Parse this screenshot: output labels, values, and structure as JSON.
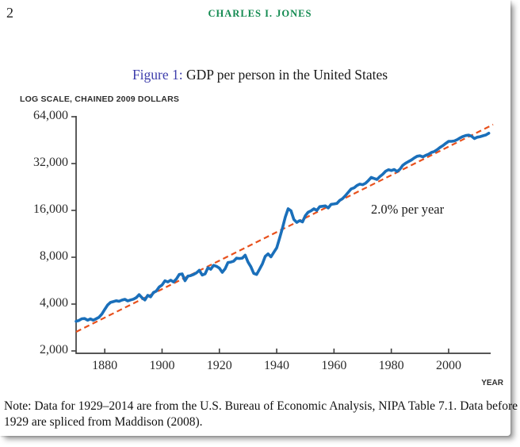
{
  "page": {
    "page_number": "2",
    "running_header": "CHARLES I. JONES"
  },
  "figure": {
    "label": "Figure 1:",
    "title": " GDP per person in the United States",
    "y_axis_caption": "LOG SCALE, CHAINED 2009 DOLLARS",
    "x_axis_label": "YEAR",
    "annotation": "2.0% per year"
  },
  "note": "Note: Data for 1929–2014 are from the U.S. Bureau of Economic Analysis, NIPA Table 7.1.  Data before 1929 are spliced from Maddison (2008).",
  "colors": {
    "series_blue": "#1a6fba",
    "trend_red": "#e8511d",
    "header_green": "#128a50",
    "figure_label_blue": "#3d3dab",
    "axis": "#3f3f3f"
  },
  "chart_data": {
    "type": "line",
    "title": "GDP per person in the United States",
    "xlabel": "YEAR",
    "ylabel": "LOG SCALE, CHAINED 2009 DOLLARS",
    "x_range": [
      1870,
      2015
    ],
    "y_range": [
      2000,
      64000
    ],
    "y_scale": "log2",
    "grid": false,
    "legend_position": "none",
    "x_ticks": [
      {
        "v": 1880,
        "label": "1880"
      },
      {
        "v": 1900,
        "label": "1900"
      },
      {
        "v": 1920,
        "label": "1920"
      },
      {
        "v": 1940,
        "label": "1940"
      },
      {
        "v": 1960,
        "label": "1960"
      },
      {
        "v": 1980,
        "label": "1980"
      },
      {
        "v": 2000,
        "label": "2000"
      }
    ],
    "y_ticks": [
      {
        "v": 2000,
        "label": "2,000"
      },
      {
        "v": 4000,
        "label": "4,000"
      },
      {
        "v": 8000,
        "label": "8,000"
      },
      {
        "v": 16000,
        "label": "16,000"
      },
      {
        "v": 32000,
        "label": "32,000"
      },
      {
        "v": 64000,
        "label": "64,000"
      }
    ],
    "series": [
      {
        "name": "GDP per person, chained 2009 dollars",
        "points": [
          [
            1870,
            3100
          ],
          [
            1871,
            3140
          ],
          [
            1872,
            3220
          ],
          [
            1873,
            3230
          ],
          [
            1874,
            3150
          ],
          [
            1875,
            3210
          ],
          [
            1876,
            3150
          ],
          [
            1877,
            3220
          ],
          [
            1878,
            3290
          ],
          [
            1879,
            3450
          ],
          [
            1880,
            3700
          ],
          [
            1881,
            3950
          ],
          [
            1882,
            4100
          ],
          [
            1883,
            4150
          ],
          [
            1884,
            4200
          ],
          [
            1885,
            4170
          ],
          [
            1886,
            4240
          ],
          [
            1887,
            4290
          ],
          [
            1888,
            4190
          ],
          [
            1889,
            4250
          ],
          [
            1890,
            4300
          ],
          [
            1891,
            4400
          ],
          [
            1892,
            4600
          ],
          [
            1893,
            4400
          ],
          [
            1894,
            4250
          ],
          [
            1895,
            4550
          ],
          [
            1896,
            4450
          ],
          [
            1897,
            4750
          ],
          [
            1898,
            4850
          ],
          [
            1899,
            5150
          ],
          [
            1900,
            5300
          ],
          [
            1901,
            5650
          ],
          [
            1902,
            5550
          ],
          [
            1903,
            5700
          ],
          [
            1904,
            5550
          ],
          [
            1905,
            5800
          ],
          [
            1906,
            6200
          ],
          [
            1907,
            6250
          ],
          [
            1908,
            5650
          ],
          [
            1909,
            6050
          ],
          [
            1910,
            6100
          ],
          [
            1911,
            6200
          ],
          [
            1912,
            6350
          ],
          [
            1913,
            6600
          ],
          [
            1914,
            6150
          ],
          [
            1915,
            6250
          ],
          [
            1916,
            6850
          ],
          [
            1917,
            6700
          ],
          [
            1918,
            7100
          ],
          [
            1919,
            7000
          ],
          [
            1920,
            6800
          ],
          [
            1921,
            6400
          ],
          [
            1922,
            6750
          ],
          [
            1923,
            7400
          ],
          [
            1924,
            7450
          ],
          [
            1925,
            7550
          ],
          [
            1926,
            7900
          ],
          [
            1927,
            7850
          ],
          [
            1928,
            7900
          ],
          [
            1929,
            8250
          ],
          [
            1930,
            7450
          ],
          [
            1931,
            6950
          ],
          [
            1932,
            6300
          ],
          [
            1933,
            6200
          ],
          [
            1934,
            6700
          ],
          [
            1935,
            7250
          ],
          [
            1936,
            8100
          ],
          [
            1937,
            8400
          ],
          [
            1938,
            8050
          ],
          [
            1939,
            8600
          ],
          [
            1940,
            9200
          ],
          [
            1941,
            10600
          ],
          [
            1942,
            12300
          ],
          [
            1943,
            14500
          ],
          [
            1944,
            16400
          ],
          [
            1945,
            15900
          ],
          [
            1946,
            14000
          ],
          [
            1947,
            13400
          ],
          [
            1948,
            13750
          ],
          [
            1949,
            13500
          ],
          [
            1950,
            14800
          ],
          [
            1951,
            15600
          ],
          [
            1952,
            15900
          ],
          [
            1953,
            16400
          ],
          [
            1954,
            16000
          ],
          [
            1955,
            16900
          ],
          [
            1956,
            17000
          ],
          [
            1957,
            17100
          ],
          [
            1958,
            16600
          ],
          [
            1959,
            17500
          ],
          [
            1960,
            17600
          ],
          [
            1961,
            17750
          ],
          [
            1962,
            18550
          ],
          [
            1963,
            19050
          ],
          [
            1964,
            19900
          ],
          [
            1965,
            20950
          ],
          [
            1966,
            22000
          ],
          [
            1967,
            22350
          ],
          [
            1968,
            23150
          ],
          [
            1969,
            23600
          ],
          [
            1970,
            23400
          ],
          [
            1971,
            23900
          ],
          [
            1972,
            24900
          ],
          [
            1973,
            26050
          ],
          [
            1974,
            25650
          ],
          [
            1975,
            25300
          ],
          [
            1976,
            26400
          ],
          [
            1977,
            27300
          ],
          [
            1978,
            28550
          ],
          [
            1979,
            29200
          ],
          [
            1980,
            28850
          ],
          [
            1981,
            29300
          ],
          [
            1982,
            28450
          ],
          [
            1983,
            29400
          ],
          [
            1984,
            31200
          ],
          [
            1985,
            32150
          ],
          [
            1986,
            32950
          ],
          [
            1987,
            33750
          ],
          [
            1988,
            34800
          ],
          [
            1989,
            35650
          ],
          [
            1990,
            35900
          ],
          [
            1991,
            35300
          ],
          [
            1992,
            36100
          ],
          [
            1993,
            36700
          ],
          [
            1994,
            37700
          ],
          [
            1995,
            38250
          ],
          [
            1996,
            39300
          ],
          [
            1997,
            40600
          ],
          [
            1998,
            41750
          ],
          [
            1999,
            43150
          ],
          [
            2000,
            44450
          ],
          [
            2001,
            44450
          ],
          [
            2002,
            44750
          ],
          [
            2003,
            45550
          ],
          [
            2004,
            46750
          ],
          [
            2005,
            47750
          ],
          [
            2006,
            48450
          ],
          [
            2007,
            48750
          ],
          [
            2008,
            47950
          ],
          [
            2009,
            46350
          ],
          [
            2010,
            47250
          ],
          [
            2011,
            47650
          ],
          [
            2012,
            48250
          ],
          [
            2013,
            48850
          ],
          [
            2014,
            50100
          ]
        ]
      }
    ],
    "trend": {
      "name": "2.0% per year trend",
      "style": "dashed",
      "points": [
        [
          1870,
          2650
        ],
        [
          2015.5,
          57000
        ]
      ]
    },
    "annotation": {
      "text": "2.0% per year"
    }
  }
}
